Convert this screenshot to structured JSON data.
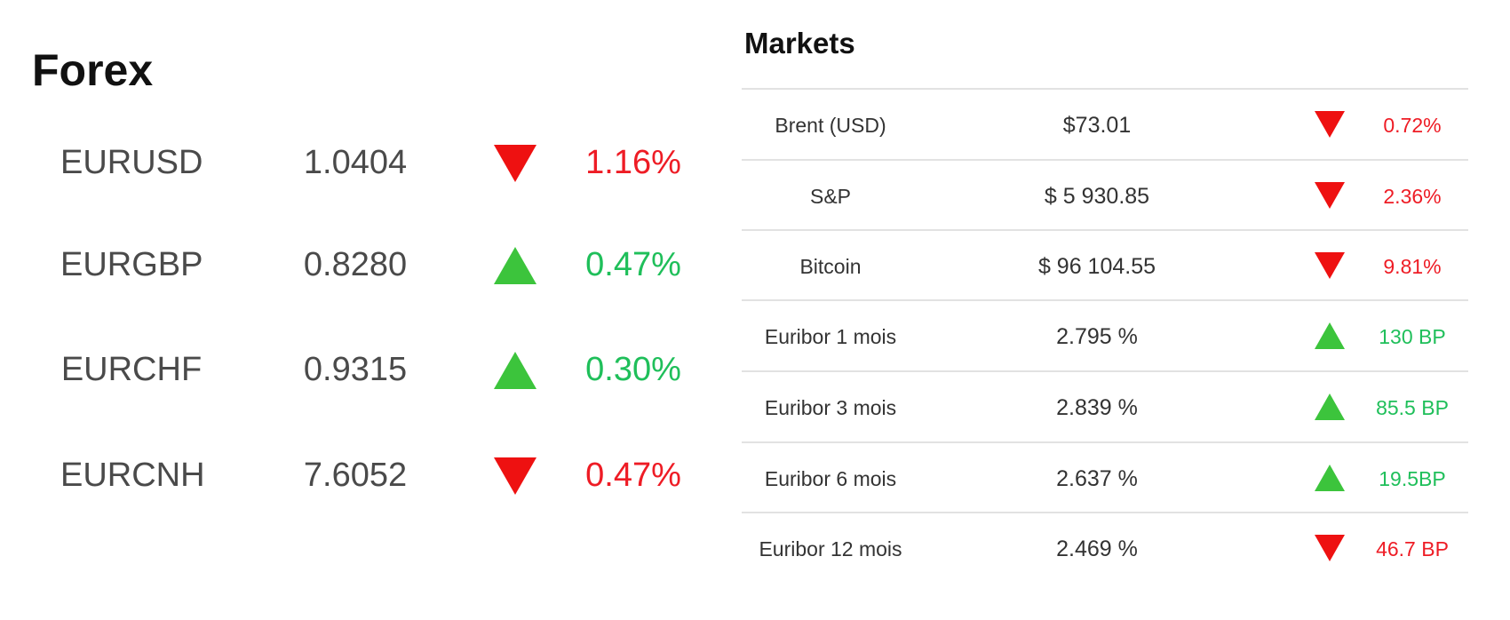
{
  "forex": {
    "title": "Forex",
    "rows": [
      {
        "pair": "EURUSD",
        "rate": "1.0404",
        "direction": "down",
        "change": "1.16%"
      },
      {
        "pair": "EURGBP",
        "rate": "0.8280",
        "direction": "up",
        "change": "0.47%"
      },
      {
        "pair": "EURCHF",
        "rate": "0.9315",
        "direction": "up",
        "change": "0.30%"
      },
      {
        "pair": "EURCNH",
        "rate": "7.6052",
        "direction": "down",
        "change": "0.47%"
      }
    ]
  },
  "markets": {
    "title": "Markets",
    "rows": [
      {
        "name": "Brent (USD)",
        "value": "$73.01",
        "direction": "down",
        "change": "0.72%"
      },
      {
        "name": "S&P",
        "value": "$ 5 930.85",
        "direction": "down",
        "change": "2.36%"
      },
      {
        "name": "Bitcoin",
        "value": "$ 96 104.55",
        "direction": "down",
        "change": "9.81%"
      },
      {
        "name": "Euribor 1 mois",
        "value": "2.795 %",
        "direction": "up",
        "change": "130 BP"
      },
      {
        "name": "Euribor 3 mois",
        "value": "2.839 %",
        "direction": "up",
        "change": "85.5 BP"
      },
      {
        "name": "Euribor 6 mois",
        "value": "2.637 %",
        "direction": "up",
        "change": "19.5BP"
      },
      {
        "name": "Euribor 12 mois",
        "value": "2.469 %",
        "direction": "down",
        "change": "46.7 BP"
      }
    ]
  },
  "colors": {
    "up_arrow": "#3cc43c",
    "down_arrow": "#ee1111",
    "up_text": "#1fbf5a",
    "down_text": "#ee1c25"
  },
  "icons": {
    "up": "triangle-up-icon",
    "down": "triangle-down-icon"
  }
}
